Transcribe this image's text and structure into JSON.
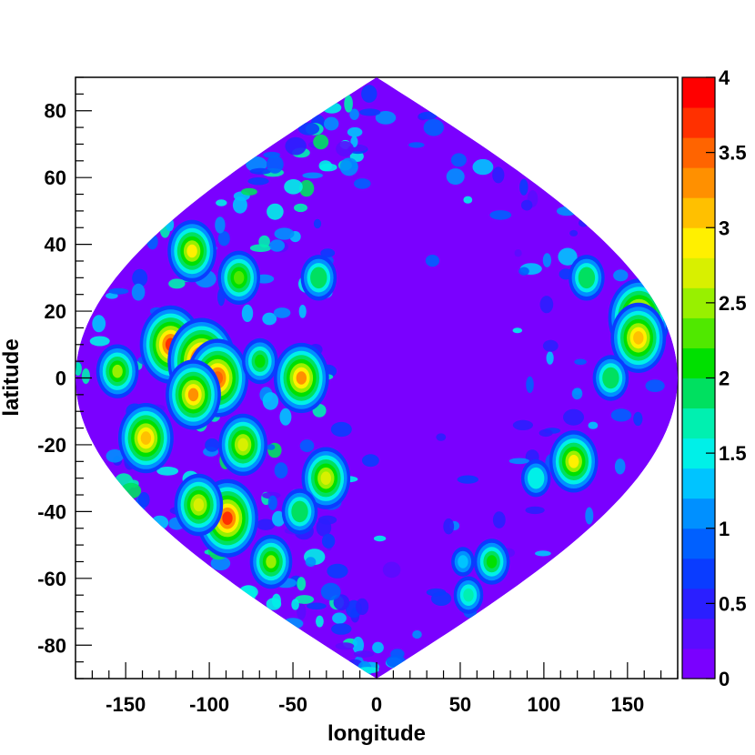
{
  "chart_data": {
    "type": "heatmap",
    "title": "",
    "xlabel": "longitude",
    "ylabel": "latitude",
    "xlim": [
      -180,
      180
    ],
    "ylim": [
      -90,
      90
    ],
    "xticks": [
      -150,
      -100,
      -50,
      0,
      50,
      100,
      150
    ],
    "xtick_labels": [
      "-150",
      "-100",
      "-50",
      "0",
      "50",
      "100",
      "150"
    ],
    "yticks": [
      80,
      60,
      40,
      20,
      0,
      -20,
      -40,
      -60,
      -80
    ],
    "ytick_labels": [
      "80",
      "60",
      "40",
      "20",
      "0",
      "-20",
      "-40",
      "-60",
      "-80"
    ],
    "projection": "sinusoidal (equal-area) full-sky map",
    "colorbar": {
      "range": [
        0,
        4
      ],
      "ticks": [
        0,
        0.5,
        1,
        1.5,
        2,
        2.5,
        3,
        3.5,
        4
      ],
      "tick_labels": [
        "0",
        "0.5",
        "1",
        "1.5",
        "2",
        "2.5",
        "3",
        "3.5",
        "4"
      ],
      "colors": [
        "#7a00ff",
        "#5a0cff",
        "#2a1fff",
        "#0a3cff",
        "#0060ff",
        "#0090ff",
        "#00c4ff",
        "#00f0e8",
        "#00f0b0",
        "#00e060",
        "#00e000",
        "#50e800",
        "#98f000",
        "#d8f000",
        "#fff000",
        "#ffc000",
        "#ff9000",
        "#ff6400",
        "#ff3000",
        "#ff0000"
      ]
    },
    "background_color": "#7a00ff",
    "hotspots": [
      {
        "lon": -140,
        "lat": 38,
        "value": 2.8
      },
      {
        "lon": -125,
        "lat": 10,
        "value": 3.6
      },
      {
        "lon": -105,
        "lat": 5,
        "value": 3.8
      },
      {
        "lon": -95,
        "lat": 0,
        "value": 3.4
      },
      {
        "lon": -110,
        "lat": -5,
        "value": 3.3
      },
      {
        "lon": -145,
        "lat": -18,
        "value": 3.0
      },
      {
        "lon": -120,
        "lat": -42,
        "value": 3.7
      },
      {
        "lon": -135,
        "lat": -38,
        "value": 2.6
      },
      {
        "lon": -110,
        "lat": -55,
        "value": 2.4
      },
      {
        "lon": -155,
        "lat": 2,
        "value": 2.5
      },
      {
        "lon": -95,
        "lat": 30,
        "value": 2.2
      },
      {
        "lon": -85,
        "lat": -20,
        "value": 2.6
      },
      {
        "lon": -70,
        "lat": 5,
        "value": 2.0
      },
      {
        "lon": -45,
        "lat": 0,
        "value": 3.2
      },
      {
        "lon": -35,
        "lat": -30,
        "value": 2.6
      },
      {
        "lon": -40,
        "lat": 30,
        "value": 1.8
      },
      {
        "lon": -60,
        "lat": -40,
        "value": 1.8
      },
      {
        "lon": 165,
        "lat": 18,
        "value": 3.4
      },
      {
        "lon": 160,
        "lat": 12,
        "value": 3.0
      },
      {
        "lon": 130,
        "lat": -25,
        "value": 2.8
      },
      {
        "lon": 120,
        "lat": -55,
        "value": 2.0
      },
      {
        "lon": 145,
        "lat": 30,
        "value": 1.8
      },
      {
        "lon": 140,
        "lat": 0,
        "value": 1.8
      },
      {
        "lon": 110,
        "lat": -30,
        "value": 1.5
      },
      {
        "lon": 90,
        "lat": -55,
        "value": 1.3
      },
      {
        "lon": 130,
        "lat": -65,
        "value": 1.6
      }
    ]
  }
}
